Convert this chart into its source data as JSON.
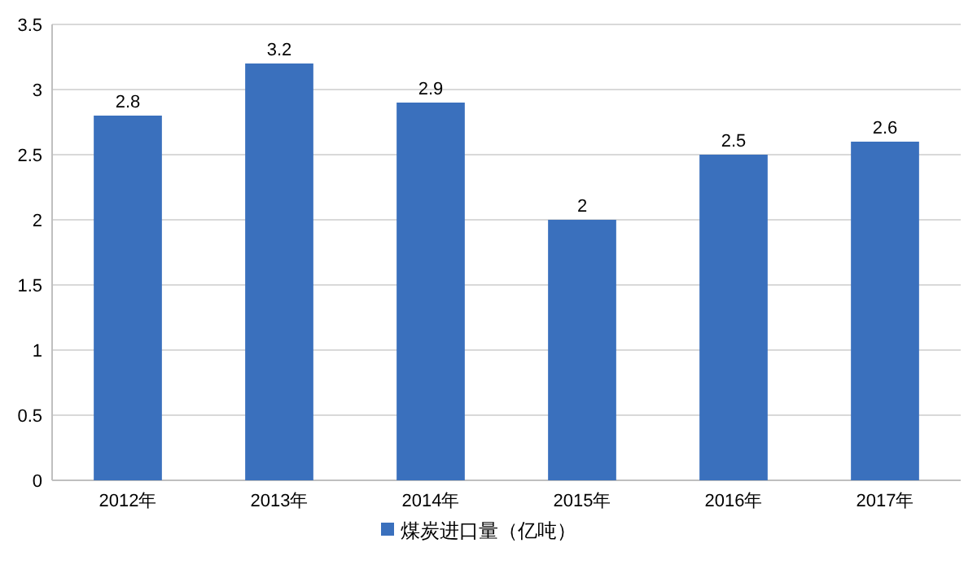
{
  "chart_data": {
    "type": "bar",
    "categories": [
      "2012年",
      "2013年",
      "2014年",
      "2015年",
      "2016年",
      "2017年"
    ],
    "series": [
      {
        "name": "煤炭进口量（亿吨）",
        "color": "#3a70bd",
        "values": [
          2.8,
          3.2,
          2.9,
          2,
          2.5,
          2.6
        ]
      }
    ],
    "ylim": [
      0,
      3.5
    ],
    "yticks": [
      0,
      0.5,
      1,
      1.5,
      2,
      2.5,
      3,
      3.5
    ],
    "grid": "y",
    "legend": "bottom",
    "data_labels": true
  }
}
